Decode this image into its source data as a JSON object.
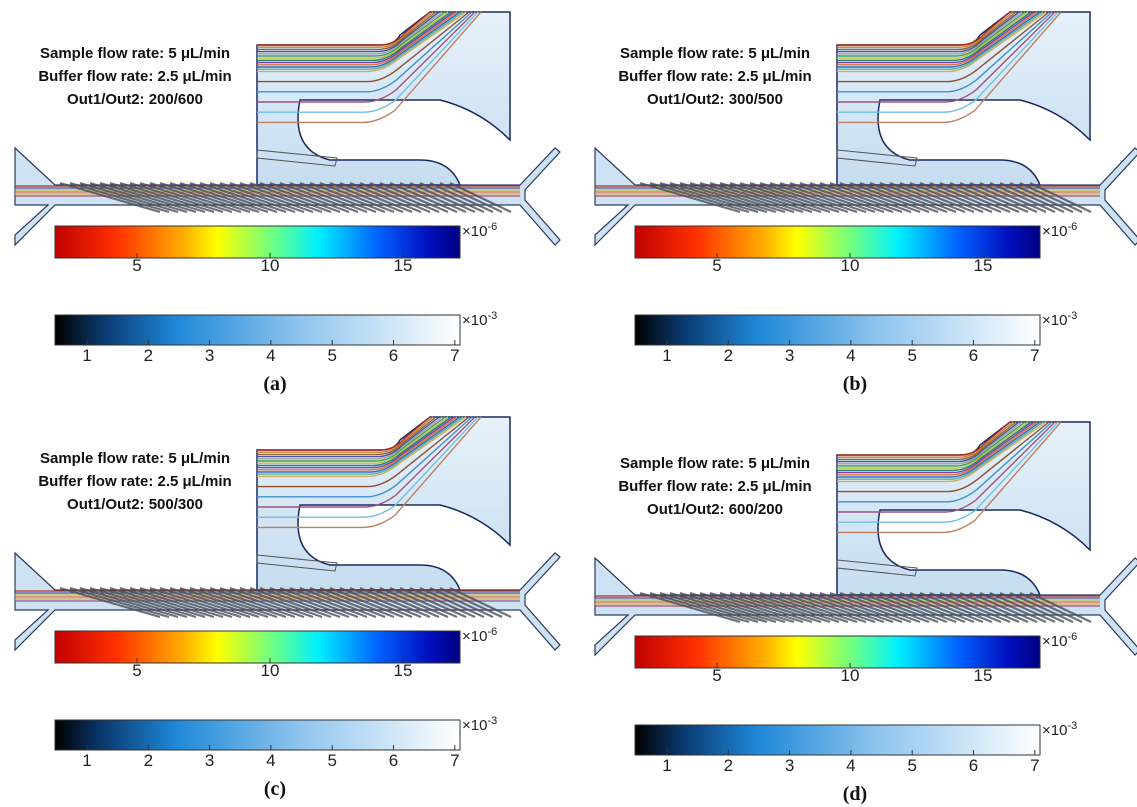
{
  "panels": [
    {
      "label": "(a)",
      "annotations": [
        "Sample flow rate: 5 μL/min",
        "Buffer flow rate: 2.5 μL/min",
        "Out1/Out2: 200/600"
      ],
      "colorbars": [
        {
          "ticks": [
            5,
            10,
            15
          ],
          "multiplier": {
            "base": "×10",
            "exponent": "-6"
          }
        },
        {
          "ticks": [
            1,
            2,
            3,
            4,
            5,
            6,
            7
          ],
          "multiplier": {
            "base": "×10",
            "exponent": "-3"
          }
        }
      ]
    },
    {
      "label": "(b)",
      "annotations": [
        "Sample flow rate: 5 μL/min",
        "Buffer flow rate: 2.5 μL/min",
        "Out1/Out2: 300/500"
      ],
      "colorbars": [
        {
          "ticks": [
            5,
            10,
            15
          ],
          "multiplier": {
            "base": "×10",
            "exponent": "-6"
          }
        },
        {
          "ticks": [
            1,
            2,
            3,
            4,
            5,
            6,
            7
          ],
          "multiplier": {
            "base": "×10",
            "exponent": "-3"
          }
        }
      ]
    },
    {
      "label": "(c)",
      "annotations": [
        "Sample flow rate: 5 μL/min",
        "Buffer flow rate: 2.5 μL/min",
        "Out1/Out2: 500/300"
      ],
      "colorbars": [
        {
          "ticks": [
            5,
            10,
            15
          ],
          "multiplier": {
            "base": "×10",
            "exponent": "-6"
          }
        },
        {
          "ticks": [
            1,
            2,
            3,
            4,
            5,
            6,
            7
          ],
          "multiplier": {
            "base": "×10",
            "exponent": "-3"
          }
        }
      ]
    },
    {
      "label": "(d)",
      "annotations": [
        "Sample flow rate: 5 μL/min",
        "Buffer flow rate: 2.5 μL/min",
        "Out1/Out2: 600/200"
      ],
      "colorbars": [
        {
          "ticks": [
            5,
            10,
            15
          ],
          "multiplier": {
            "base": "×10",
            "exponent": "-6"
          }
        },
        {
          "ticks": [
            1,
            2,
            3,
            4,
            5,
            6,
            7
          ],
          "multiplier": {
            "base": "×10",
            "exponent": "-3"
          }
        }
      ]
    }
  ]
}
